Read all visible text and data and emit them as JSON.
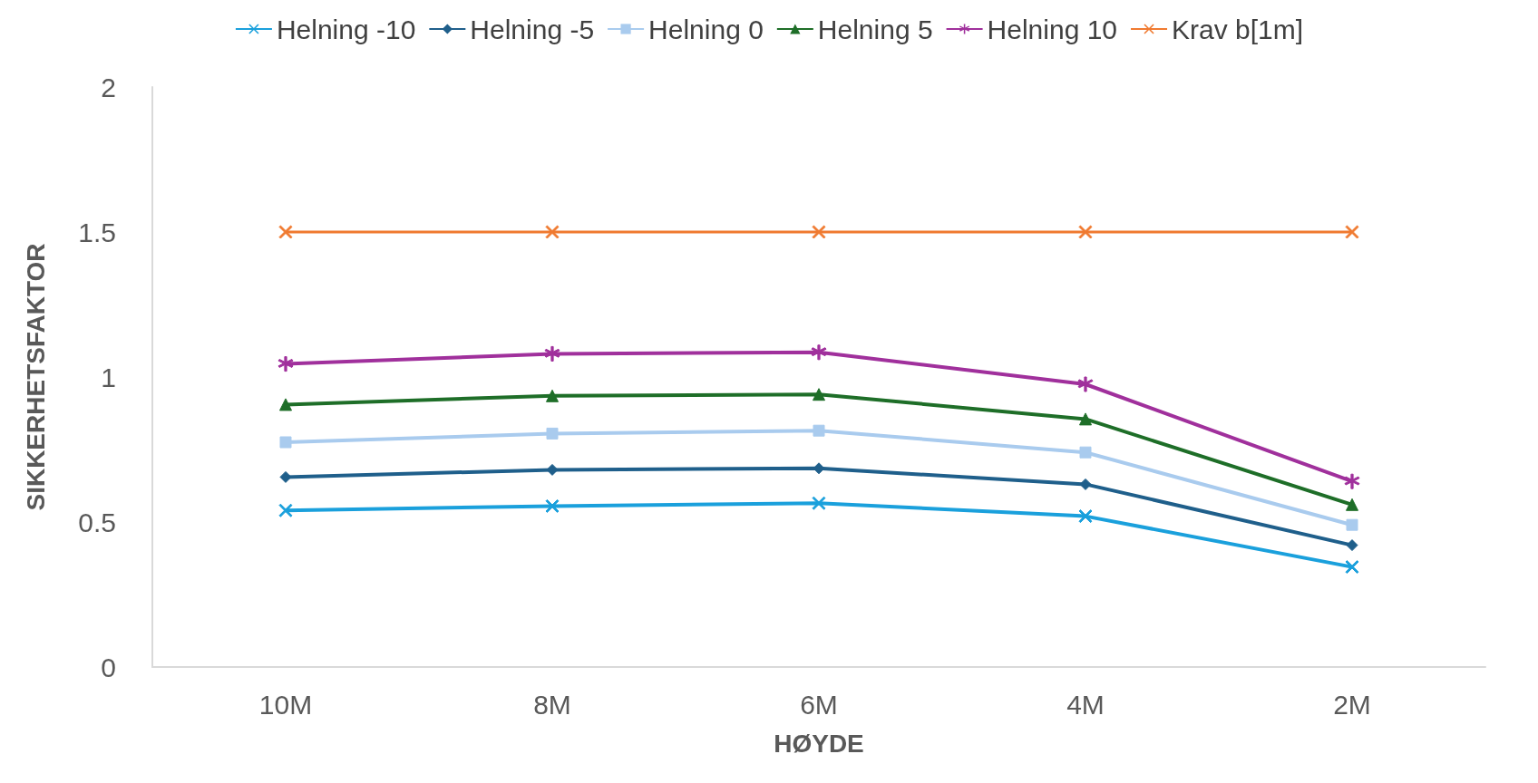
{
  "chart_data": {
    "type": "line",
    "xlabel": "HØYDE",
    "ylabel": "SIKKERHETSFAKTOR",
    "categories": [
      "10M",
      "8M",
      "6M",
      "4M",
      "2M"
    ],
    "ylim": [
      0,
      2
    ],
    "yticks": [
      0,
      0.5,
      1,
      1.5,
      2
    ],
    "grid": false,
    "legend": "top",
    "series": [
      {
        "name": "Helning -10",
        "color": "#1aa0dc",
        "marker": "cross",
        "values": [
          0.54,
          0.555,
          0.565,
          0.52,
          0.345
        ]
      },
      {
        "name": "Helning -5",
        "color": "#1f5f8b",
        "marker": "diamond",
        "values": [
          0.655,
          0.68,
          0.685,
          0.63,
          0.42
        ]
      },
      {
        "name": "Helning 0",
        "color": "#a9cbee",
        "marker": "square",
        "values": [
          0.775,
          0.805,
          0.815,
          0.74,
          0.49
        ]
      },
      {
        "name": "Helning 5",
        "color": "#1e6e28",
        "marker": "triangle",
        "values": [
          0.905,
          0.935,
          0.94,
          0.855,
          0.56
        ]
      },
      {
        "name": "Helning 10",
        "color": "#a0309c",
        "marker": "star",
        "values": [
          1.045,
          1.08,
          1.085,
          0.975,
          0.64
        ]
      },
      {
        "name": "Krav b[1m]",
        "color": "#f07a30",
        "marker": "cross",
        "values": [
          1.5,
          1.5,
          1.5,
          1.5,
          1.5
        ]
      }
    ]
  }
}
